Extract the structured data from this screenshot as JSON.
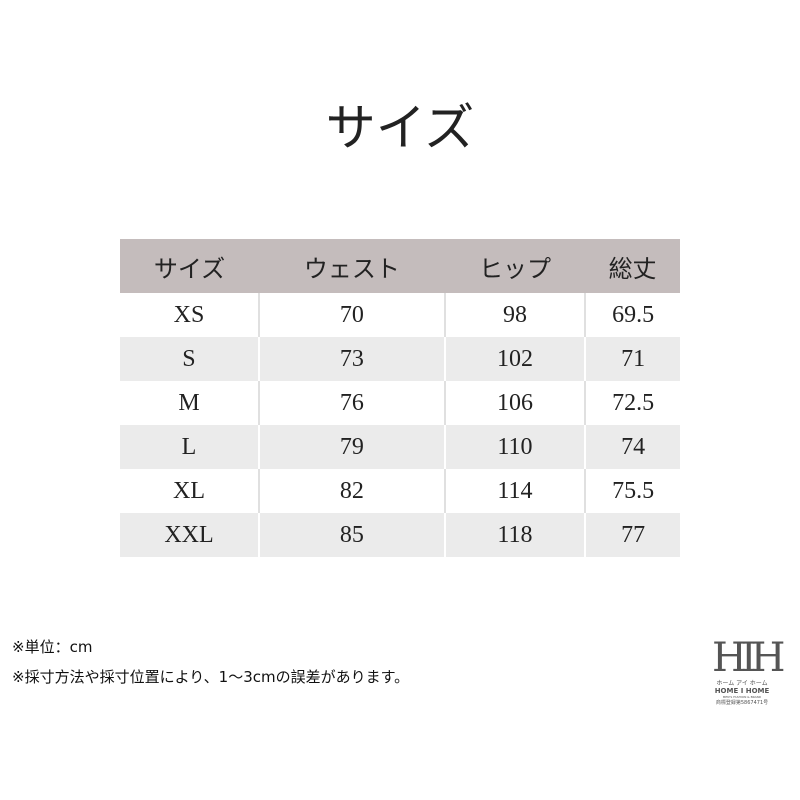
{
  "title": "サイズ",
  "table": {
    "headers": [
      "サイズ",
      "ウェスト",
      "ヒップ",
      "総丈"
    ],
    "rows": [
      [
        "XS",
        "70",
        "98",
        "69.5"
      ],
      [
        "S",
        "73",
        "102",
        "71"
      ],
      [
        "M",
        "76",
        "106",
        "72.5"
      ],
      [
        "L",
        "79",
        "110",
        "74"
      ],
      [
        "XL",
        "82",
        "114",
        "75.5"
      ],
      [
        "XXL",
        "85",
        "118",
        "77"
      ]
    ]
  },
  "notes": [
    "※単位：cm",
    "※採寸方法や採寸位置により、1～3cmの誤差があります。"
  ],
  "logo": {
    "mark": "HIH",
    "kana": "ホーム アイ ホーム",
    "name": "HOME I HOME",
    "tagline": "MEN'S FASHION & BRAND",
    "trademark": "商標登録第5867471号"
  }
}
